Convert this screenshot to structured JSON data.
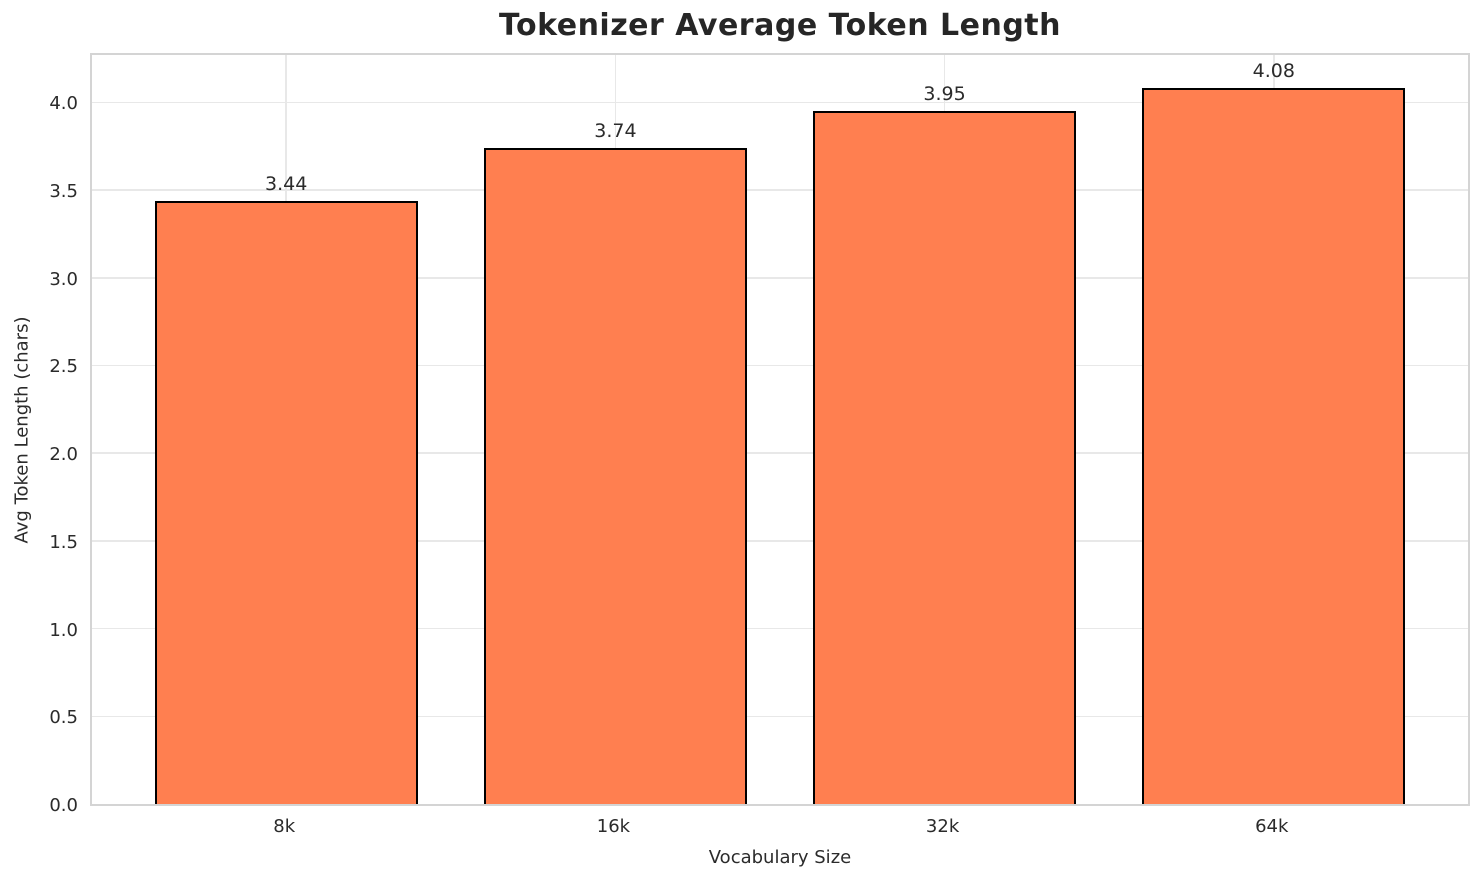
{
  "chart_data": {
    "type": "bar",
    "title": "Tokenizer Average Token Length",
    "xlabel": "Vocabulary Size",
    "ylabel": "Avg Token Length (chars)",
    "categories": [
      "8k",
      "16k",
      "32k",
      "64k"
    ],
    "values": [
      3.44,
      3.74,
      3.95,
      4.08
    ],
    "value_labels": [
      "3.44",
      "3.74",
      "3.95",
      "4.08"
    ],
    "ylim": [
      0,
      4.27
    ],
    "yticks": [
      0.0,
      0.5,
      1.0,
      1.5,
      2.0,
      2.5,
      3.0,
      3.5,
      4.0
    ],
    "ytick_labels": [
      "0.0",
      "0.5",
      "1.0",
      "1.5",
      "2.0",
      "2.5",
      "3.0",
      "3.5",
      "4.0"
    ],
    "xlim": [
      -0.59,
      3.59
    ],
    "bar_width_data_units": 0.8,
    "grid": "both",
    "legend": "none",
    "colors": {
      "bar_fill": "#FF7F50",
      "bar_edge": "#000000",
      "grid_line": "#e8e8e8",
      "spine": "#d4d4d4",
      "text": "#2b2b2b",
      "title_text": "#262626",
      "background": "#ffffff"
    }
  }
}
